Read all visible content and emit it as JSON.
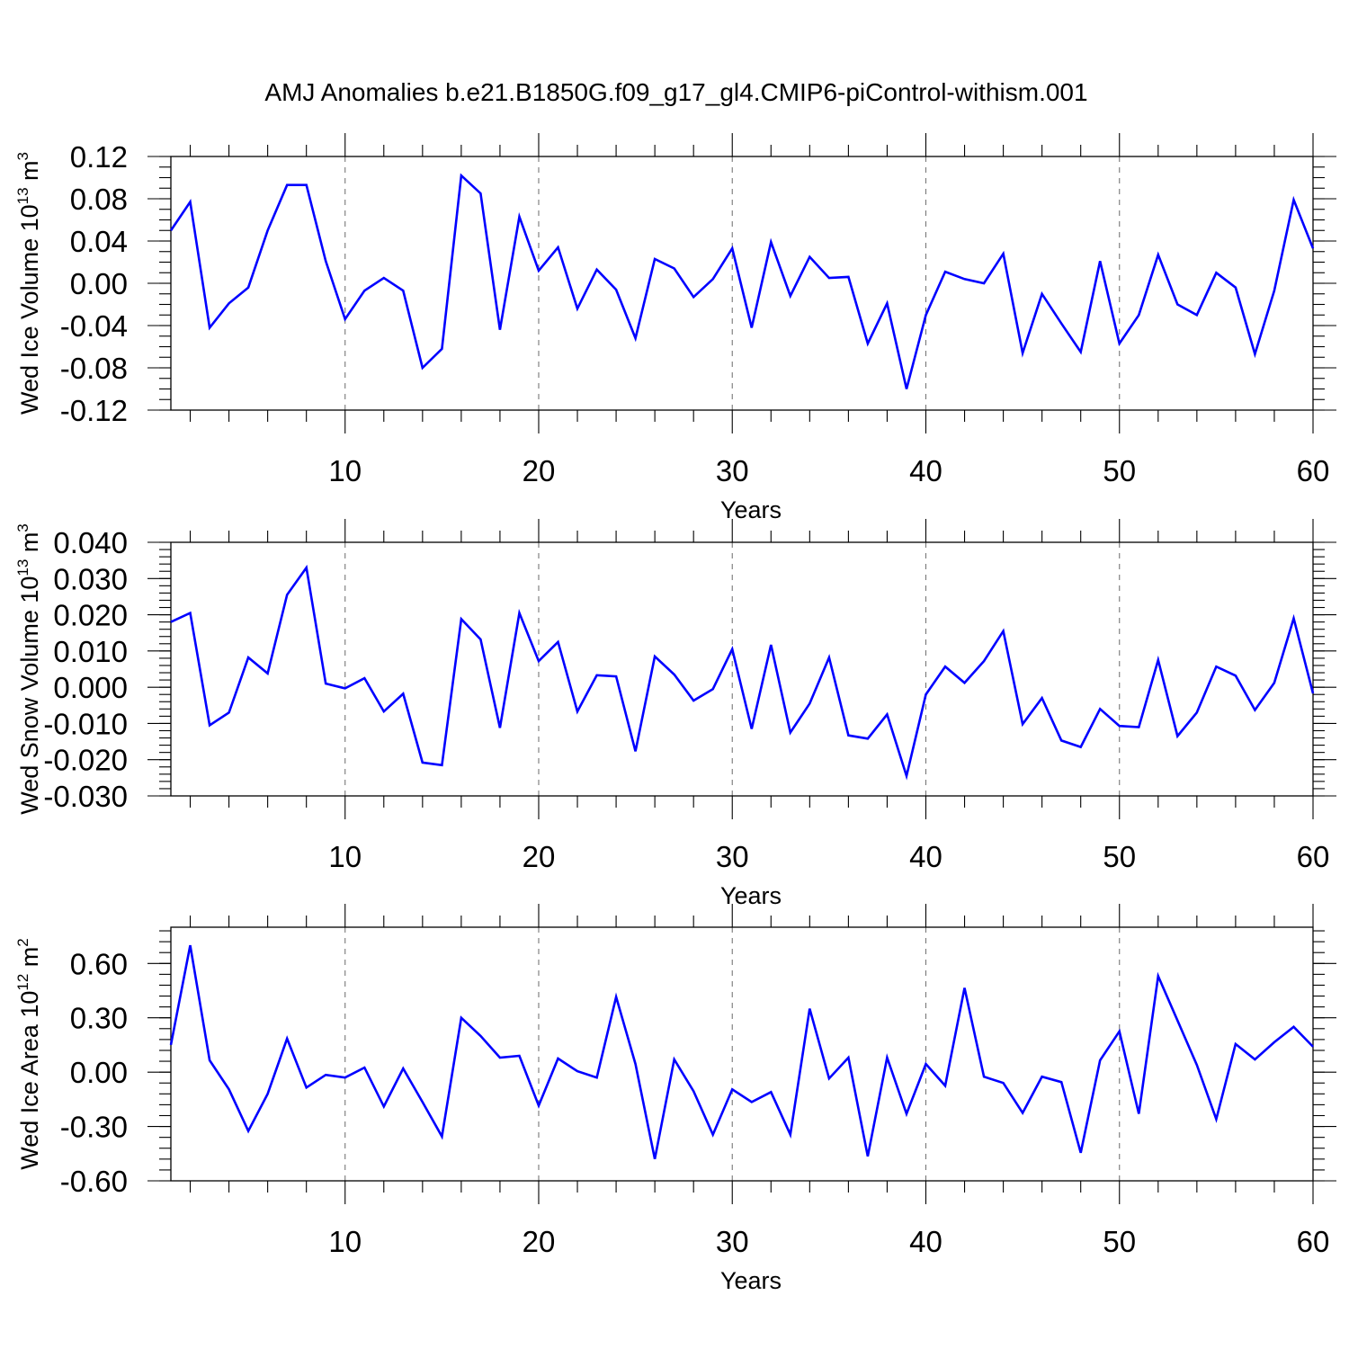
{
  "title": "AMJ Anomalies b.e21.B1850G.f09_g17_gl4.CMIP6-piControl-withism.001",
  "colors": {
    "line": "#0000ff",
    "grid": "#777777",
    "axis": "#000000"
  },
  "chart_data": [
    {
      "type": "line",
      "name": "ice-volume",
      "ylabel": "Wed Ice Volume 10",
      "ylabel_exp": "13",
      "ylabel_unit": " m",
      "ylabel_unit_exp": "3",
      "xlabel": "Years",
      "xlim": [
        1,
        60
      ],
      "ylim": [
        -0.12,
        0.12
      ],
      "x_ticks": [
        "10",
        "20",
        "30",
        "40",
        "50",
        "60"
      ],
      "y_ticks": [
        "0.12",
        "0.08",
        "0.04",
        "0.00",
        "-0.04",
        "-0.08",
        "-0.12"
      ],
      "grid": "vertical dashed at each decade",
      "series": [
        {
          "name": "Wed Ice Volume",
          "values": [
            0.05,
            0.077,
            -0.042,
            -0.019,
            -0.004,
            0.05,
            0.093,
            0.093,
            0.021,
            -0.034,
            -0.007,
            0.005,
            -0.007,
            -0.08,
            -0.062,
            0.102,
            0.085,
            -0.044,
            0.063,
            0.012,
            0.034,
            -0.024,
            0.013,
            -0.006,
            -0.052,
            0.023,
            0.014,
            -0.013,
            0.004,
            0.033,
            -0.042,
            0.039,
            -0.012,
            0.025,
            0.005,
            0.006,
            -0.057,
            -0.019,
            -0.1,
            -0.03,
            0.011,
            0.004,
            0.0,
            0.028,
            -0.066,
            -0.01,
            -0.038,
            -0.065,
            0.021,
            -0.057,
            -0.03,
            0.027,
            -0.02,
            -0.03,
            0.01,
            -0.004,
            -0.067,
            -0.007,
            0.079,
            0.033
          ]
        }
      ]
    },
    {
      "type": "line",
      "name": "snow-volume",
      "ylabel": "Wed Snow Volume 10",
      "ylabel_exp": "13",
      "ylabel_unit": " m",
      "ylabel_unit_exp": "3",
      "xlabel": "Years",
      "xlim": [
        1,
        60
      ],
      "ylim": [
        -0.03,
        0.04
      ],
      "x_ticks": [
        "10",
        "20",
        "30",
        "40",
        "50",
        "60"
      ],
      "y_ticks": [
        "0.040",
        "0.030",
        "0.020",
        "0.010",
        "0.000",
        "-0.010",
        "-0.020",
        "-0.030"
      ],
      "grid": "vertical dashed at each decade",
      "series": [
        {
          "name": "Wed Snow Volume",
          "values": [
            0.018,
            0.0205,
            -0.0105,
            -0.007,
            0.0082,
            0.0038,
            0.0255,
            0.033,
            0.001,
            -0.0003,
            0.0025,
            -0.0067,
            -0.0018,
            -0.0208,
            -0.0215,
            0.0188,
            0.0132,
            -0.0112,
            0.0205,
            0.0072,
            0.0125,
            -0.0067,
            0.0033,
            0.003,
            -0.0177,
            0.0085,
            0.0035,
            -0.0037,
            -0.0005,
            0.0105,
            -0.0115,
            0.0117,
            -0.0125,
            -0.0045,
            0.0082,
            -0.0133,
            -0.0142,
            -0.0075,
            -0.0245,
            -0.002,
            0.0057,
            0.0012,
            0.0072,
            0.0155,
            -0.0102,
            -0.003,
            -0.0147,
            -0.0165,
            -0.006,
            -0.0107,
            -0.011,
            0.0075,
            -0.0135,
            -0.007,
            0.0057,
            0.0032,
            -0.0063,
            0.0012,
            0.019,
            -0.0017
          ]
        }
      ]
    },
    {
      "type": "line",
      "name": "ice-area",
      "ylabel": "Wed Ice Area 10",
      "ylabel_exp": "12",
      "ylabel_unit": " m",
      "ylabel_unit_exp": "2",
      "xlabel": "Years",
      "xlim": [
        1,
        60
      ],
      "ylim": [
        -0.6,
        0.8
      ],
      "x_ticks": [
        "10",
        "20",
        "30",
        "40",
        "50",
        "60"
      ],
      "y_ticks": [
        "0.60",
        "0.30",
        "0.00",
        "-0.30",
        "-0.60"
      ],
      "grid": "vertical dashed at each decade",
      "series": [
        {
          "name": "Wed Ice Area",
          "values": [
            0.15,
            0.7,
            0.065,
            -0.095,
            -0.325,
            -0.12,
            0.185,
            -0.085,
            -0.015,
            -0.03,
            0.025,
            -0.19,
            0.02,
            -0.165,
            -0.355,
            0.3,
            0.2,
            0.08,
            0.09,
            -0.185,
            0.075,
            0.005,
            -0.03,
            0.415,
            0.045,
            -0.48,
            0.07,
            -0.105,
            -0.345,
            -0.095,
            -0.165,
            -0.11,
            -0.345,
            0.35,
            -0.035,
            0.08,
            -0.465,
            0.08,
            -0.23,
            0.045,
            -0.075,
            0.465,
            -0.025,
            -0.06,
            -0.225,
            -0.025,
            -0.055,
            -0.445,
            0.065,
            0.225,
            -0.23,
            0.53,
            0.285,
            0.04,
            -0.26,
            0.155,
            0.07,
            0.165,
            0.25,
            0.14
          ]
        }
      ]
    }
  ]
}
